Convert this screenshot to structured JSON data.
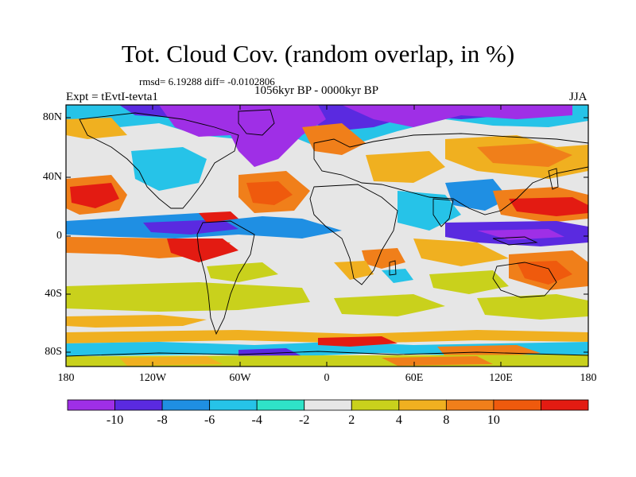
{
  "title": "Tot. Cloud Cov. (random overlap, in %)",
  "stats": "rmsd= 6.19288 diff= -0.0102806",
  "period": "1056kyr BP - 0000kyr BP",
  "experiment": "Expt = tEvtI-tevta1",
  "season": "JJA",
  "axes": {
    "y_ticks": [
      "80N",
      "40N",
      "0",
      "40S",
      "80S"
    ],
    "x_ticks": [
      "180",
      "120W",
      "60W",
      "0",
      "60E",
      "120E",
      "180"
    ]
  },
  "colorbar": {
    "labels": [
      "-10",
      "-8",
      "-6",
      "-4",
      "-2",
      "2",
      "4",
      "8",
      "10"
    ],
    "colors": [
      "#9f2fe6",
      "#5a2ae0",
      "#1f8fe3",
      "#26c3e8",
      "#2fe3c8",
      "#e6e6e6",
      "#c9d11c",
      "#f0b020",
      "#f07f1a",
      "#ef5a0d",
      "#e31b12"
    ]
  },
  "colors": {
    "land_outline": "#000000",
    "neutral": "#e6e6e6"
  }
}
